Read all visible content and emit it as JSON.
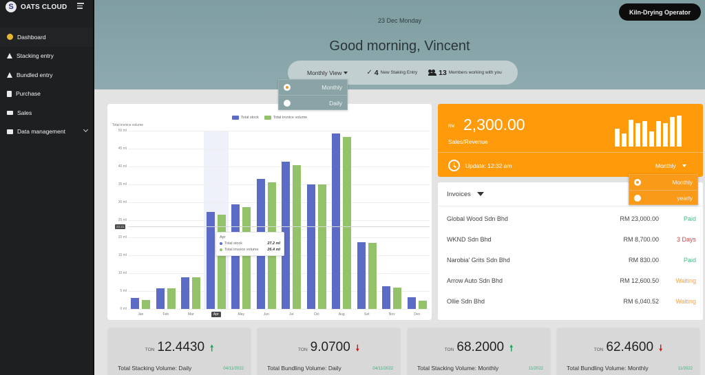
{
  "sidebar": {
    "brand": "OATS CLOUD",
    "logo_letter": "S",
    "items": [
      {
        "label": "Dashboard",
        "icon": "dashboard-icon",
        "active": true
      },
      {
        "label": "Stacking entry",
        "icon": "warning-triangle-icon"
      },
      {
        "label": "Bundled entry",
        "icon": "warning-triangle-icon"
      },
      {
        "label": "Purchase",
        "icon": "document-icon"
      },
      {
        "label": "Sales",
        "icon": "tag-icon"
      },
      {
        "label": "Data management",
        "icon": "folder-icon",
        "expandable": true
      }
    ]
  },
  "header": {
    "date": "23 Dec Monday",
    "greeting": "Good morning, Vincent",
    "role": "Kiln-Drying Operator",
    "view_select": "Monthly View",
    "new_entries_count": "4",
    "new_entries_label": "New Staking Entry",
    "members_count": "13",
    "members_label": "Members working with you"
  },
  "view_menu": {
    "options": [
      {
        "label": "Monthly",
        "selected": true
      },
      {
        "label": "Daily",
        "selected": false
      }
    ]
  },
  "chart": {
    "y_title": "Total invoice volume",
    "legend": [
      {
        "label": "Total stock",
        "color": "#5b6bc6"
      },
      {
        "label": "Total invoice volume",
        "color": "#93c26a"
      }
    ],
    "y_ticks": [
      "0 ml",
      "5 ml",
      "10 ml",
      "15 ml",
      "20 ml",
      "25 ml",
      "30 ml",
      "35 ml",
      "40 ml",
      "45 ml",
      "50 ml"
    ],
    "crosshair_value": "23.21",
    "tooltip": {
      "title": "Apr",
      "rows": [
        {
          "label": "Total stock",
          "value": "27.2 ml",
          "color": "#5b6bc6"
        },
        {
          "label": "Total invoice volume",
          "value": "26.4 ml",
          "color": "#93c26a"
        }
      ]
    }
  },
  "chart_data": {
    "type": "bar",
    "title": "",
    "xlabel": "",
    "ylabel": "Total invoice volume",
    "ylim": [
      0,
      50
    ],
    "grid": true,
    "legend_position": "top",
    "categories": [
      "Jan",
      "Feb",
      "Mar",
      "Apr",
      "May",
      "Jun",
      "Jul",
      "Oct",
      "Aug",
      "Set",
      "Nov",
      "Dec"
    ],
    "series": [
      {
        "name": "Total stock",
        "values": [
          3.1,
          5.8,
          8.9,
          27.2,
          29.3,
          36.5,
          41.3,
          35.0,
          49.2,
          18.7,
          6.4,
          3.3
        ]
      },
      {
        "name": "Total invoice volume",
        "values": [
          2.5,
          5.8,
          8.9,
          26.4,
          28.6,
          35.5,
          40.3,
          35.0,
          48.3,
          18.6,
          5.9,
          2.3
        ]
      }
    ],
    "highlighted_category": "Apr"
  },
  "revenue": {
    "currency": "RM",
    "value": "2,300.00",
    "label": "Sales/Revenue",
    "update": "Update: 12:32 am",
    "period": "Monthly",
    "sparkline": [
      26,
      19,
      39,
      34,
      37,
      22,
      37,
      34,
      43,
      45
    ]
  },
  "period_menu": {
    "options": [
      {
        "label": "Monthly",
        "selected": true
      },
      {
        "label": "yearly",
        "selected": false
      }
    ]
  },
  "invoices": {
    "title": "Invoices",
    "rows": [
      {
        "name": "Global Wood Sdn Bhd",
        "amount": "RM 23,000.00",
        "status": "Paid",
        "color": "#3fbf85"
      },
      {
        "name": "WKND Sdn Bhd",
        "amount": "RM 8,700.00",
        "status": "3 Days",
        "color": "#d24545"
      },
      {
        "name": "Narobia' Grits Sdn Bhd",
        "amount": "RM 830.00",
        "status": "Paid",
        "color": "#3fbf85"
      },
      {
        "name": "Arrow Auto Sdn Bhd",
        "amount": "RM 12,600.50",
        "status": "Waiting",
        "color": "#f0a24a"
      },
      {
        "name": "Ollie Sdn Bhd",
        "amount": "RM 6,040.52",
        "status": "Waiting",
        "color": "#f0a24a"
      }
    ]
  },
  "kpis": [
    {
      "unit": "TON",
      "value": "12.4430",
      "trend": "up",
      "label": "Total Stacking Volume:  Daily",
      "date": "04/11/2022"
    },
    {
      "unit": "TON",
      "value": "9.0700",
      "trend": "down",
      "label": "Total Bundling Volume: Daily",
      "date": "04/11/2022"
    },
    {
      "unit": "TON",
      "value": "68.2000",
      "trend": "up",
      "label": "Total Stacking Volume: Monthly",
      "date": "11/2022"
    },
    {
      "unit": "TON",
      "value": "62.4600",
      "trend": "down",
      "label": "Total Bundling Volume: Monthly",
      "date": "11/2022"
    }
  ]
}
